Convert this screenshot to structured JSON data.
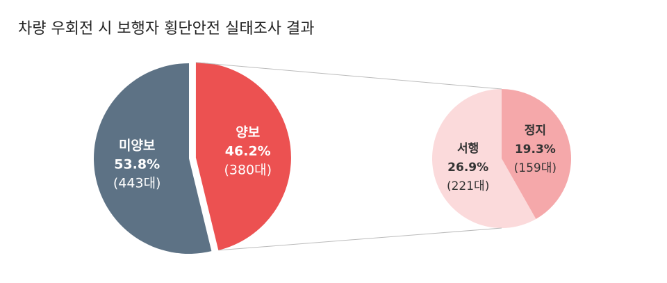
{
  "chart_data": [
    {
      "type": "pie",
      "title": "차량 우회전 시 보행자 횡단안전 실태조사 결과",
      "categories": [
        "미양보",
        "양보"
      ],
      "values": [
        53.8,
        46.2
      ],
      "value_labels": [
        "53.8%",
        "46.2%"
      ],
      "counts": [
        443,
        380
      ],
      "count_labels": [
        "(443대)",
        "(380대)"
      ],
      "colors": [
        "#5d7285",
        "#ec5151"
      ],
      "label_color": "#ffffff",
      "explode": [
        false,
        true
      ]
    },
    {
      "type": "pie",
      "categories": [
        "서행",
        "정지"
      ],
      "values": [
        26.9,
        19.3
      ],
      "value_labels": [
        "26.9%",
        "19.3%"
      ],
      "counts": [
        221,
        159
      ],
      "count_labels": [
        "(221대)",
        "(159대)"
      ],
      "colors": [
        "#fbdadb",
        "#f5a8aa"
      ],
      "label_color": "#333333",
      "explode": [
        false,
        false
      ]
    }
  ]
}
